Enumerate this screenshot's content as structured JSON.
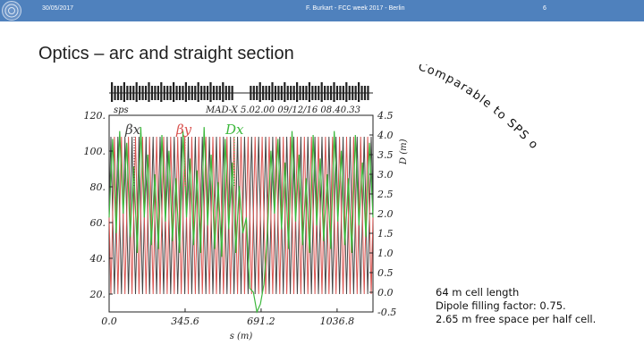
{
  "header": {
    "date": "30/05/2017",
    "center": "F. Burkart - FCC week 2017 - Berlin",
    "page": "6"
  },
  "slide": {
    "title": "Optics – arc and straight section",
    "curved_note": "Comparable to SPS optics.",
    "notes": [
      "64 m cell length",
      "Dipole filling factor: 0.75.",
      "2.65 m free space per half cell."
    ]
  },
  "chart_data": {
    "type": "line",
    "title": "MAD-X 5.02.00  09/12/16 08.40.33",
    "corner_label": "sps",
    "xlabel": "s (m)",
    "ylabel_right": "D (m)",
    "xlim": [
      0.0,
      1200.0
    ],
    "ylim_left": [
      10.0,
      120.0
    ],
    "ylim_right": [
      -0.5,
      4.5
    ],
    "x_ticks": [
      "0.0",
      "345.6",
      "691.2",
      "1036.8"
    ],
    "x_tick_values": [
      0.0,
      345.6,
      691.2,
      1036.8
    ],
    "y_ticks_left": [
      "20.",
      "40.",
      "60.",
      "80.",
      "100.",
      "120."
    ],
    "y_tick_values_left": [
      20,
      40,
      60,
      80,
      100,
      120
    ],
    "y_ticks_right": [
      "-0.5",
      "0.0",
      "0.5",
      "1.0",
      "1.5",
      "2.0",
      "2.5",
      "3.0",
      "3.5",
      "4.0",
      "4.5"
    ],
    "y_tick_values_right": [
      -0.5,
      0.0,
      0.5,
      1.0,
      1.5,
      2.0,
      2.5,
      3.0,
      3.5,
      4.0,
      4.5
    ],
    "legend": [
      {
        "name": "βx",
        "color": "#444444"
      },
      {
        "name": "βy",
        "color": "#d9534f"
      },
      {
        "name": "Dx",
        "color": "#3cb83c"
      }
    ],
    "series": [
      {
        "name": "βx",
        "axis": "left",
        "color": "#444444",
        "period_m": 32,
        "min": 20,
        "max": 108,
        "phase": 0
      },
      {
        "name": "βy",
        "axis": "left",
        "color": "#d9534f",
        "period_m": 32,
        "min": 20,
        "max": 108,
        "phase": 0.5
      },
      {
        "name": "Dx",
        "axis": "right",
        "color": "#3cb83c",
        "x": [
          0,
          16,
          32,
          48,
          64,
          80,
          96,
          112,
          128,
          144,
          160,
          176,
          192,
          208,
          224,
          240,
          256,
          272,
          288,
          304,
          320,
          336,
          352,
          368,
          384,
          400,
          416,
          432,
          448,
          464,
          480,
          496,
          512,
          528,
          544,
          560,
          576,
          592,
          608,
          624,
          640,
          656,
          672,
          688,
          704,
          720,
          736,
          752,
          768,
          784,
          800,
          816,
          832,
          848,
          864,
          880,
          896,
          912,
          928,
          944,
          960,
          976,
          992,
          1008,
          1024,
          1040,
          1056,
          1072,
          1088,
          1104,
          1120,
          1136,
          1152,
          1168,
          1184,
          1200
        ],
        "y": [
          1.9,
          3.9,
          1.5,
          4.1,
          2.0,
          3.8,
          1.4,
          3.2,
          1.0,
          4.2,
          1.9,
          3.5,
          1.2,
          3.0,
          1.1,
          4.0,
          1.8,
          3.6,
          1.3,
          2.9,
          1.0,
          4.1,
          1.9,
          3.4,
          1.2,
          3.1,
          1.0,
          4.2,
          1.7,
          3.5,
          1.1,
          2.8,
          0.9,
          3.9,
          1.6,
          3.3,
          1.0,
          2.7,
          1.5,
          1.9,
          0.1,
          0.0,
          -0.5,
          -0.3,
          0.2,
          1.5,
          3.6,
          2.0,
          3.9,
          1.6,
          3.3,
          1.1,
          4.1,
          1.8,
          3.5,
          1.2,
          2.9,
          1.0,
          4.0,
          1.7,
          3.4,
          1.3,
          3.0,
          1.1,
          4.1,
          1.8,
          3.6,
          1.2,
          2.9,
          1.0,
          4.0,
          1.7,
          3.3,
          1.4,
          3.8,
          1.9
        ]
      }
    ]
  }
}
